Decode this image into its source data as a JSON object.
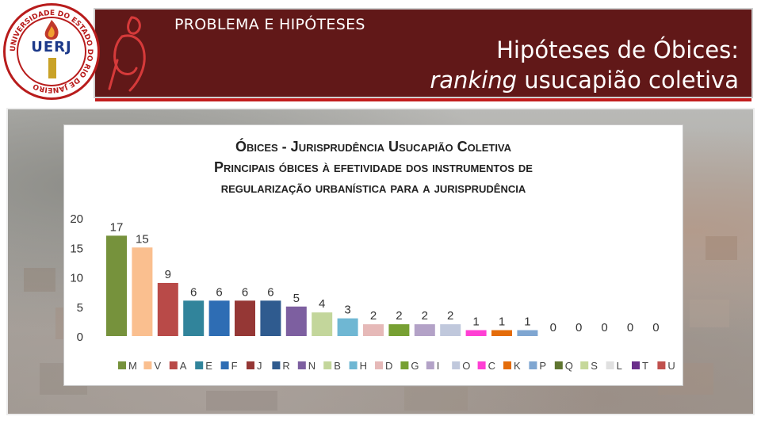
{
  "header": {
    "section_title": "PROBLEMA E HIPÓTESES",
    "title_line1": "Hipóteses de Óbices:",
    "title_line2_italic": "ranking",
    "title_line2_rest": " usucapião coletiva",
    "logo_text": "UERJ",
    "logo_ring_text": "UNIVERSIDADE DO ESTADO DO RIO DE JANEIRO"
  },
  "colors": {
    "header_bg": "#611818",
    "accent_red": "#c21d1d"
  },
  "chart_data": {
    "type": "bar",
    "title_lines": [
      "Óbices - Jurisprudência Usucapião Coletiva",
      "Principais óbices à efetividade dos instrumentos de",
      "regularização urbanística para a jurisprudência"
    ],
    "categories": [
      "M",
      "V",
      "A",
      "E",
      "F",
      "J",
      "R",
      "N",
      "B",
      "H",
      "D",
      "G",
      "I",
      "O",
      "C",
      "K",
      "P",
      "Q",
      "S",
      "L",
      "T",
      "U"
    ],
    "values": [
      17,
      15,
      9,
      6,
      6,
      6,
      6,
      5,
      4,
      3,
      2,
      2,
      2,
      2,
      1,
      1,
      1,
      0,
      0,
      0,
      0,
      0
    ],
    "colors": [
      "#76923c",
      "#fabf8f",
      "#b94a48",
      "#31849b",
      "#2e6db4",
      "#953735",
      "#2f5b8f",
      "#7d5fa0",
      "#c3d69b",
      "#6fb7d3",
      "#e6b9b8",
      "#77a033",
      "#b3a2c7",
      "#c0c8dc",
      "#ff3fd4",
      "#e46c0a",
      "#7fa6d1",
      "#5f7530",
      "#c6d89a",
      "#e0e0e0",
      "#6a2e8a",
      "#c0504d"
    ],
    "yticks": [
      0,
      5,
      10,
      15,
      20
    ],
    "ylim": [
      0,
      20
    ],
    "legend_position": "bottom",
    "grid": false
  }
}
